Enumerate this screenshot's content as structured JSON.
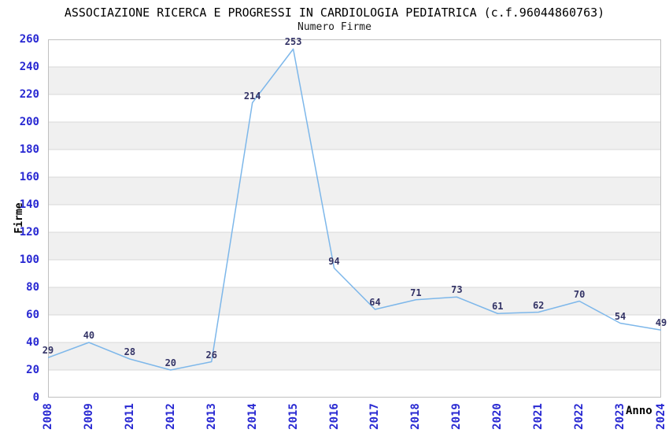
{
  "chart_data": {
    "type": "line",
    "title": "ASSOCIAZIONE RICERCA E PROGRESSI IN CARDIOLOGIA PEDIATRICA (c.f.96044860763)",
    "subtitle": "Numero Firme",
    "xlabel": "Anno",
    "ylabel": "Firme",
    "categories": [
      "2008",
      "2009",
      "2011",
      "2012",
      "2013",
      "2014",
      "2015",
      "2016",
      "2017",
      "2018",
      "2019",
      "2020",
      "2021",
      "2022",
      "2023",
      "2024"
    ],
    "values": [
      29,
      40,
      28,
      20,
      26,
      214,
      253,
      94,
      64,
      71,
      73,
      61,
      62,
      70,
      54,
      49
    ],
    "ylim": [
      0,
      260
    ],
    "ytick_step": 20,
    "grid": "horizontal-only",
    "legend": "none",
    "show_point_labels": true,
    "colors": {
      "line": "#7db7ea",
      "tick_label": "#2828d2",
      "data_label": "#333366",
      "band": "#f0f0f0",
      "gridline": "#d9d9d9",
      "border": "#c0c0c0",
      "background": "#ffffff"
    }
  }
}
